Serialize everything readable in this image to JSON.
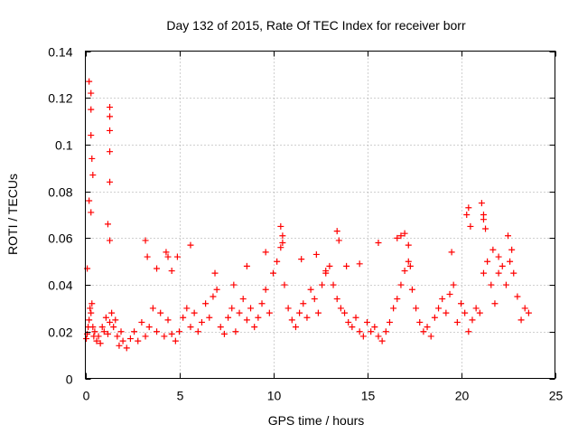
{
  "chart_data": {
    "type": "scatter",
    "title": "Day 132 of 2015, Rate Of TEC Index for receiver borr",
    "xlabel": "GPS time / hours",
    "ylabel": "ROTI / TECUs",
    "xlim": [
      0,
      25
    ],
    "ylim": [
      0,
      0.14
    ],
    "xticks": [
      0,
      5,
      10,
      15,
      20,
      25
    ],
    "xtick_labels": [
      "0",
      "5",
      "10",
      "15",
      "20",
      "25"
    ],
    "yticks": [
      0,
      0.02,
      0.04,
      0.06,
      0.08,
      0.1,
      0.12,
      0.14
    ],
    "ytick_labels": [
      "0",
      "0.02",
      "0.04",
      "0.06",
      "0.08",
      "0.1",
      "0.12",
      "0.14"
    ],
    "grid": true,
    "marker": "+",
    "color": "#ff0000",
    "series": [
      {
        "name": "ROTI",
        "x": [
          0.05,
          0.1,
          0.15,
          0.2,
          0.25,
          0.3,
          0.35,
          0.4,
          0.45,
          0.5,
          0.6,
          0.7,
          0.8,
          0.9,
          1.0,
          1.1,
          1.2,
          1.3,
          1.4,
          1.5,
          1.6,
          1.7,
          1.8,
          1.9,
          2.0,
          2.2,
          2.4,
          2.6,
          2.8,
          3.0,
          3.2,
          3.4,
          3.6,
          3.8,
          4.0,
          4.2,
          4.4,
          4.6,
          4.8,
          5.0,
          5.2,
          5.4,
          5.6,
          5.8,
          6.0,
          6.2,
          6.4,
          6.6,
          6.8,
          7.0,
          7.2,
          7.4,
          7.6,
          7.8,
          8.0,
          8.2,
          8.4,
          8.6,
          8.8,
          9.0,
          9.2,
          9.4,
          9.6,
          9.8,
          10.0,
          10.2,
          10.4,
          10.6,
          10.8,
          11.0,
          11.2,
          11.4,
          11.6,
          11.8,
          12.0,
          12.2,
          12.4,
          12.6,
          12.8,
          13.0,
          13.2,
          13.4,
          13.6,
          13.8,
          14.0,
          14.2,
          14.4,
          14.6,
          14.8,
          15.0,
          15.2,
          15.4,
          15.6,
          15.8,
          16.0,
          16.2,
          16.4,
          16.6,
          16.8,
          17.0,
          17.2,
          17.4,
          17.6,
          17.8,
          18.0,
          18.2,
          18.4,
          18.6,
          18.8,
          19.0,
          19.2,
          19.4,
          19.6,
          19.8,
          20.0,
          20.2,
          20.4,
          20.6,
          20.8,
          21.0,
          21.2,
          21.4,
          21.6,
          21.8,
          22.0,
          22.2,
          22.4,
          22.6,
          22.8,
          23.0,
          23.2,
          23.4,
          23.6,
          0.2,
          0.3,
          0.3,
          0.3,
          0.35,
          0.4,
          0.2,
          0.3,
          0.1,
          1.3,
          1.3,
          1.3,
          1.3,
          1.3,
          1.2,
          1.3,
          3.2,
          3.3,
          3.8,
          4.3,
          4.4,
          4.6,
          4.9,
          5.6,
          6.9,
          7.9,
          8.6,
          9.6,
          10.4,
          10.5,
          10.5,
          11.5,
          12.3,
          12.8,
          13.4,
          13.5,
          13.9,
          14.6,
          15.6,
          16.6,
          16.8,
          17.0,
          17.2,
          17.3,
          19.5,
          20.3,
          20.4,
          20.5,
          21.1,
          21.2,
          21.2,
          21.3,
          21.7,
          22.0,
          22.5,
          22.7
        ],
        "y": [
          0.017,
          0.019,
          0.022,
          0.025,
          0.03,
          0.028,
          0.032,
          0.022,
          0.018,
          0.02,
          0.016,
          0.018,
          0.015,
          0.022,
          0.02,
          0.026,
          0.019,
          0.024,
          0.028,
          0.022,
          0.025,
          0.018,
          0.014,
          0.02,
          0.016,
          0.013,
          0.017,
          0.02,
          0.016,
          0.024,
          0.018,
          0.022,
          0.03,
          0.02,
          0.028,
          0.018,
          0.025,
          0.019,
          0.016,
          0.02,
          0.026,
          0.03,
          0.022,
          0.028,
          0.02,
          0.024,
          0.032,
          0.026,
          0.035,
          0.038,
          0.022,
          0.019,
          0.026,
          0.03,
          0.02,
          0.028,
          0.034,
          0.025,
          0.03,
          0.022,
          0.026,
          0.032,
          0.038,
          0.028,
          0.045,
          0.05,
          0.056,
          0.04,
          0.03,
          0.025,
          0.022,
          0.028,
          0.032,
          0.026,
          0.038,
          0.034,
          0.028,
          0.04,
          0.046,
          0.048,
          0.04,
          0.034,
          0.03,
          0.028,
          0.024,
          0.022,
          0.026,
          0.02,
          0.018,
          0.024,
          0.02,
          0.022,
          0.018,
          0.016,
          0.02,
          0.024,
          0.03,
          0.034,
          0.04,
          0.046,
          0.05,
          0.038,
          0.03,
          0.024,
          0.02,
          0.022,
          0.018,
          0.026,
          0.03,
          0.034,
          0.028,
          0.036,
          0.04,
          0.024,
          0.032,
          0.028,
          0.02,
          0.025,
          0.03,
          0.028,
          0.045,
          0.05,
          0.04,
          0.032,
          0.045,
          0.048,
          0.04,
          0.05,
          0.045,
          0.035,
          0.025,
          0.03,
          0.028,
          0.127,
          0.122,
          0.115,
          0.104,
          0.094,
          0.087,
          0.076,
          0.071,
          0.047,
          0.116,
          0.112,
          0.106,
          0.097,
          0.084,
          0.066,
          0.059,
          0.059,
          0.052,
          0.047,
          0.054,
          0.052,
          0.046,
          0.052,
          0.057,
          0.045,
          0.04,
          0.048,
          0.054,
          0.065,
          0.061,
          0.058,
          0.051,
          0.053,
          0.045,
          0.063,
          0.059,
          0.048,
          0.049,
          0.058,
          0.06,
          0.061,
          0.062,
          0.057,
          0.048,
          0.054,
          0.07,
          0.073,
          0.065,
          0.075,
          0.07,
          0.068,
          0.064,
          0.055,
          0.052,
          0.061,
          0.055
        ]
      }
    ]
  }
}
